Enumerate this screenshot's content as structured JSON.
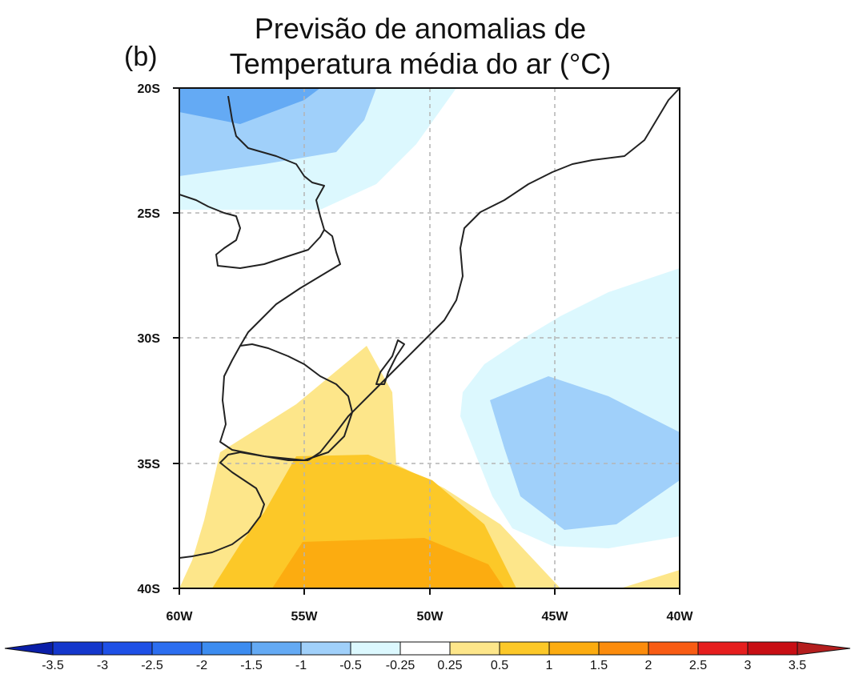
{
  "title_line1": "Previsão de anomalias de",
  "title_line2": "Temperatura média do ar (°C)",
  "panel_label": "(b)",
  "map": {
    "lon_range": [
      -60,
      -40
    ],
    "lat_range": [
      -40,
      -20
    ],
    "lat_ticks": [
      {
        "value": -20,
        "label": "20S"
      },
      {
        "value": -25,
        "label": "25S"
      },
      {
        "value": -30,
        "label": "30S"
      },
      {
        "value": -35,
        "label": "35S"
      },
      {
        "value": -40,
        "label": "40S"
      }
    ],
    "lon_ticks": [
      {
        "value": -60,
        "label": "60W"
      },
      {
        "value": -55,
        "label": "55W"
      },
      {
        "value": -50,
        "label": "50W"
      },
      {
        "value": -45,
        "label": "45W"
      },
      {
        "value": -40,
        "label": "40W"
      }
    ],
    "gridlines": true
  },
  "colorbar": {
    "labels": [
      "-3.5",
      "-3",
      "-2.5",
      "-2",
      "-1.5",
      "-1",
      "-0.5",
      "-0.25",
      "0.25",
      "0.5",
      "1",
      "1.5",
      "2",
      "2.5",
      "3",
      "3.5"
    ],
    "colors": [
      "#0a1ea8",
      "#1437cc",
      "#1e50e6",
      "#2c6ef0",
      "#3c8cf0",
      "#64aaf4",
      "#a0d0fa",
      "#dcf8fe",
      "#ffffff",
      "#fde68a",
      "#fcc828",
      "#fcac10",
      "#fc8c0c",
      "#f85c14",
      "#e61e1e",
      "#c80e14",
      "#b41e1e"
    ]
  }
}
